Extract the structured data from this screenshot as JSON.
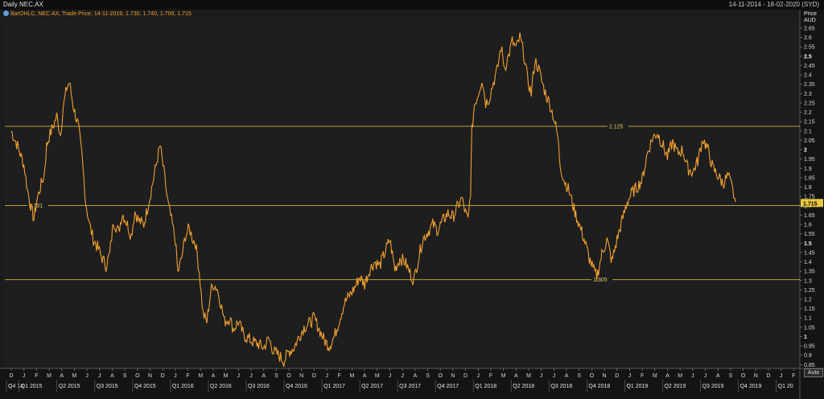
{
  "header": {
    "title": "Daily NEC.AX",
    "date_range": "14-11-2014 - 18-02-2020 (SYD)",
    "legend": "BarOHLC, NEC.AX, Trade Price,  14-11-2019, 1.730, 1.740, 1.700, 1.715",
    "price_label": "Price",
    "currency_label": "AUD",
    "auto_button": "Auto"
  },
  "chart_data": {
    "type": "line",
    "title": "Daily NEC.AX",
    "ylabel": "Price AUD",
    "ylim": [
      0.83,
      2.68
    ],
    "y_ticks": [
      "0.85",
      "0.9",
      "0.95",
      "1",
      "1.05",
      "1.1",
      "1.15",
      "1.2",
      "1.25",
      "1.3",
      "1.35",
      "1.4",
      "1.45",
      "1.5",
      "1.55",
      "1.6",
      "1.65",
      "1.7",
      "1.75",
      "1.8",
      "1.85",
      "1.9",
      "1.95",
      "2",
      "2.05",
      "2.1",
      "2.15",
      "2.2",
      "2.25",
      "2.3",
      "2.35",
      "2.4",
      "2.45",
      "2.5",
      "2.55",
      "2.6",
      "2.65"
    ],
    "bold_ticks": [
      "1",
      "1.5",
      "2",
      "2.5"
    ],
    "x_months": [
      "D",
      "J",
      "F",
      "M",
      "A",
      "M",
      "J",
      "J",
      "A",
      "S",
      "O",
      "N",
      "D",
      "J",
      "F",
      "M",
      "A",
      "M",
      "J",
      "J",
      "A",
      "S",
      "O",
      "N",
      "D",
      "J",
      "F",
      "M",
      "A",
      "M",
      "J",
      "J",
      "A",
      "S",
      "O",
      "N",
      "D",
      "J",
      "F",
      "M",
      "A",
      "M",
      "J",
      "J",
      "A",
      "S",
      "O",
      "N",
      "D",
      "J",
      "F",
      "M",
      "A",
      "M",
      "J",
      "J",
      "A",
      "S",
      "O",
      "N",
      "D",
      "J",
      "F"
    ],
    "x_quarters": [
      {
        "label": "Q4 14",
        "m": 0
      },
      {
        "label": "Q1 2015",
        "m": 1
      },
      {
        "label": "Q2 2015",
        "m": 4
      },
      {
        "label": "Q3 2015",
        "m": 7
      },
      {
        "label": "Q4 2015",
        "m": 10
      },
      {
        "label": "Q1 2016",
        "m": 13
      },
      {
        "label": "Q2 2016",
        "m": 16
      },
      {
        "label": "Q3 2016",
        "m": 19
      },
      {
        "label": "Q4 2016",
        "m": 22
      },
      {
        "label": "Q1 2017",
        "m": 25
      },
      {
        "label": "Q2 2017",
        "m": 28
      },
      {
        "label": "Q3 2017",
        "m": 31
      },
      {
        "label": "Q4 2017",
        "m": 34
      },
      {
        "label": "Q1 2018",
        "m": 37
      },
      {
        "label": "Q2 2018",
        "m": 40
      },
      {
        "label": "Q3 2018",
        "m": 43
      },
      {
        "label": "Q4 2018",
        "m": 46
      },
      {
        "label": "Q1 2019",
        "m": 49
      },
      {
        "label": "Q2 2019",
        "m": 52
      },
      {
        "label": "Q3 2019",
        "m": 55
      },
      {
        "label": "Q4 2019",
        "m": 58
      },
      {
        "label": "Q1 20",
        "m": 61
      }
    ],
    "hlines": [
      {
        "value": 2.125,
        "label": "2.125",
        "label_pos": 0.76
      },
      {
        "value": 1.701,
        "label": "1.701",
        "label_pos": 0.03
      },
      {
        "value": 1.305,
        "label": "1.305",
        "label_pos": 0.74
      }
    ],
    "last_price": {
      "value": 1.715,
      "label": "1.715"
    },
    "series": [
      {
        "points": [
          [
            0.0,
            2.1
          ],
          [
            0.5,
            2.02
          ],
          [
            1.0,
            1.92
          ],
          [
            1.3,
            1.78
          ],
          [
            1.6,
            1.68
          ],
          [
            1.8,
            1.63
          ],
          [
            2.0,
            1.72
          ],
          [
            2.3,
            1.8
          ],
          [
            2.6,
            1.86
          ],
          [
            2.8,
            2.02
          ],
          [
            3.0,
            2.07
          ],
          [
            3.3,
            2.12
          ],
          [
            3.6,
            2.18
          ],
          [
            3.9,
            2.08
          ],
          [
            4.1,
            2.22
          ],
          [
            4.4,
            2.33
          ],
          [
            4.6,
            2.36
          ],
          [
            4.9,
            2.24
          ],
          [
            5.1,
            2.18
          ],
          [
            5.3,
            2.13
          ],
          [
            5.6,
            1.97
          ],
          [
            5.9,
            1.72
          ],
          [
            6.2,
            1.6
          ],
          [
            6.5,
            1.52
          ],
          [
            6.9,
            1.47
          ],
          [
            7.2,
            1.42
          ],
          [
            7.5,
            1.38
          ],
          [
            7.8,
            1.44
          ],
          [
            8.1,
            1.62
          ],
          [
            8.5,
            1.56
          ],
          [
            8.8,
            1.66
          ],
          [
            9.2,
            1.6
          ],
          [
            9.5,
            1.54
          ],
          [
            9.8,
            1.67
          ],
          [
            10.1,
            1.62
          ],
          [
            10.5,
            1.6
          ],
          [
            10.9,
            1.72
          ],
          [
            11.2,
            1.82
          ],
          [
            11.6,
            1.96
          ],
          [
            11.8,
            2.02
          ],
          [
            12.1,
            1.88
          ],
          [
            12.4,
            1.72
          ],
          [
            12.7,
            1.62
          ],
          [
            13.0,
            1.52
          ],
          [
            13.2,
            1.34
          ],
          [
            13.5,
            1.42
          ],
          [
            13.8,
            1.54
          ],
          [
            14.1,
            1.58
          ],
          [
            14.4,
            1.52
          ],
          [
            14.6,
            1.5
          ],
          [
            14.9,
            1.35
          ],
          [
            15.2,
            1.12
          ],
          [
            15.5,
            1.08
          ],
          [
            15.8,
            1.24
          ],
          [
            16.0,
            1.28
          ],
          [
            16.3,
            1.26
          ],
          [
            16.6,
            1.18
          ],
          [
            16.9,
            1.08
          ],
          [
            17.3,
            1.1
          ],
          [
            17.6,
            1.04
          ],
          [
            18.0,
            1.08
          ],
          [
            18.4,
            1.01
          ],
          [
            18.8,
            0.99
          ],
          [
            19.2,
            0.97
          ],
          [
            19.6,
            0.96
          ],
          [
            20.0,
            0.94
          ],
          [
            20.4,
            0.99
          ],
          [
            20.8,
            0.92
          ],
          [
            21.2,
            0.9
          ],
          [
            21.6,
            0.87
          ],
          [
            22.0,
            0.92
          ],
          [
            22.4,
            0.94
          ],
          [
            22.8,
            1.0
          ],
          [
            23.2,
            1.05
          ],
          [
            23.6,
            1.07
          ],
          [
            24.0,
            1.1
          ],
          [
            24.4,
            1.04
          ],
          [
            24.8,
            0.98
          ],
          [
            25.2,
            0.95
          ],
          [
            25.6,
            1.0
          ],
          [
            26.0,
            1.09
          ],
          [
            26.4,
            1.18
          ],
          [
            26.8,
            1.22
          ],
          [
            27.2,
            1.26
          ],
          [
            27.6,
            1.32
          ],
          [
            28.0,
            1.28
          ],
          [
            28.4,
            1.36
          ],
          [
            28.8,
            1.4
          ],
          [
            29.2,
            1.38
          ],
          [
            29.6,
            1.45
          ],
          [
            30.0,
            1.52
          ],
          [
            30.4,
            1.36
          ],
          [
            30.8,
            1.42
          ],
          [
            31.2,
            1.4
          ],
          [
            31.6,
            1.34
          ],
          [
            31.9,
            1.3
          ],
          [
            32.2,
            1.4
          ],
          [
            32.6,
            1.52
          ],
          [
            33.0,
            1.56
          ],
          [
            33.4,
            1.6
          ],
          [
            33.8,
            1.57
          ],
          [
            34.2,
            1.62
          ],
          [
            34.6,
            1.66
          ],
          [
            35.0,
            1.64
          ],
          [
            35.4,
            1.7
          ],
          [
            35.7,
            1.74
          ],
          [
            36.0,
            1.66
          ],
          [
            36.2,
            1.62
          ],
          [
            36.4,
            1.78
          ],
          [
            36.5,
            2.1
          ],
          [
            36.7,
            2.24
          ],
          [
            37.0,
            2.3
          ],
          [
            37.3,
            2.38
          ],
          [
            37.6,
            2.25
          ],
          [
            37.9,
            2.28
          ],
          [
            38.2,
            2.36
          ],
          [
            38.5,
            2.42
          ],
          [
            38.8,
            2.55
          ],
          [
            39.1,
            2.44
          ],
          [
            39.4,
            2.5
          ],
          [
            39.7,
            2.58
          ],
          [
            40.0,
            2.54
          ],
          [
            40.3,
            2.6
          ],
          [
            40.6,
            2.52
          ],
          [
            40.9,
            2.38
          ],
          [
            41.2,
            2.3
          ],
          [
            41.5,
            2.48
          ],
          [
            41.8,
            2.43
          ],
          [
            42.1,
            2.35
          ],
          [
            42.4,
            2.29
          ],
          [
            42.7,
            2.24
          ],
          [
            43.0,
            2.17
          ],
          [
            43.3,
            2.07
          ],
          [
            43.5,
            1.92
          ],
          [
            43.8,
            1.84
          ],
          [
            44.2,
            1.78
          ],
          [
            44.6,
            1.68
          ],
          [
            45.0,
            1.6
          ],
          [
            45.4,
            1.52
          ],
          [
            45.8,
            1.42
          ],
          [
            46.1,
            1.36
          ],
          [
            46.4,
            1.32
          ],
          [
            46.8,
            1.44
          ],
          [
            47.2,
            1.52
          ],
          [
            47.6,
            1.4
          ],
          [
            48.0,
            1.52
          ],
          [
            48.4,
            1.62
          ],
          [
            48.8,
            1.72
          ],
          [
            49.2,
            1.77
          ],
          [
            49.6,
            1.8
          ],
          [
            50.0,
            1.84
          ],
          [
            50.4,
            1.98
          ],
          [
            50.8,
            2.06
          ],
          [
            51.2,
            2.09
          ],
          [
            51.6,
            2.03
          ],
          [
            52.0,
            1.96
          ],
          [
            52.4,
            2.04
          ],
          [
            52.8,
            1.98
          ],
          [
            53.2,
            2.0
          ],
          [
            53.6,
            1.9
          ],
          [
            54.0,
            1.88
          ],
          [
            54.4,
            1.94
          ],
          [
            54.8,
            2.06
          ],
          [
            55.2,
            2.0
          ],
          [
            55.6,
            1.9
          ],
          [
            56.0,
            1.86
          ],
          [
            56.4,
            1.82
          ],
          [
            56.8,
            1.86
          ],
          [
            57.1,
            1.8
          ],
          [
            57.4,
            1.72
          ]
        ]
      }
    ]
  }
}
